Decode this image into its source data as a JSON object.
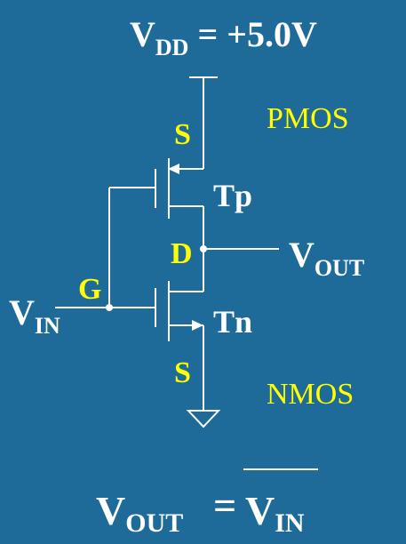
{
  "supply": {
    "base": "V",
    "sub": "DD",
    "rest": " = +5.0V"
  },
  "transistors": {
    "pmos": {
      "type_label": "PMOS",
      "name": "Tp"
    },
    "nmos": {
      "type_label": "NMOS",
      "name": "Tn"
    }
  },
  "terminals": {
    "source_top": "S",
    "drain": "D",
    "gate": "G",
    "source_bottom": "S"
  },
  "input": {
    "base": "V",
    "sub": "IN"
  },
  "output": {
    "base": "V",
    "sub": "OUT"
  },
  "equation": {
    "lhs_base": "V",
    "lhs_sub": "OUT",
    "op": "=",
    "rhs_base": "V",
    "rhs_sub": "IN"
  },
  "colors": {
    "background": "#1e6b9a",
    "wire": "#ffffff",
    "terminal_label": "#ffff00",
    "type_label": "#ffff00",
    "text": "#ffffff"
  }
}
